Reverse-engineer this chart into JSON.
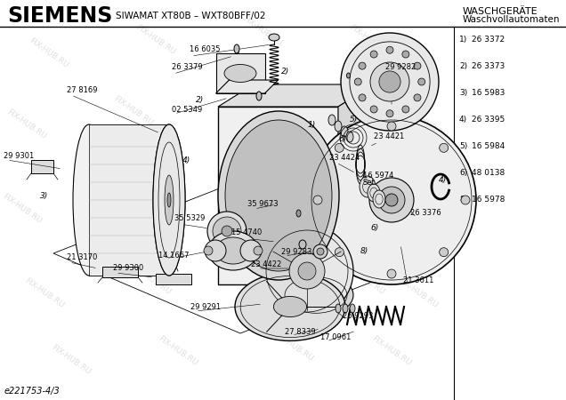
{
  "title_brand": "SIEMENS",
  "title_model": "SIWAMAT XT80B – WXT80BFF/02",
  "title_right1": "WASCHGERÄTE",
  "title_right2": "Waschvollautomaten",
  "footer_ref": "e221753-4/3",
  "parts_list": [
    [
      "1)",
      "26 3372"
    ],
    [
      "2)",
      "26 3373"
    ],
    [
      "3)",
      "16 5983"
    ],
    [
      "4)",
      "26 3395"
    ],
    [
      "5)",
      "16 5984"
    ],
    [
      "6)",
      "48 0138"
    ],
    [
      "8)",
      "16 5978"
    ]
  ],
  "watermark_text": "FIX-HUB.RU",
  "bg_color": "#ffffff"
}
